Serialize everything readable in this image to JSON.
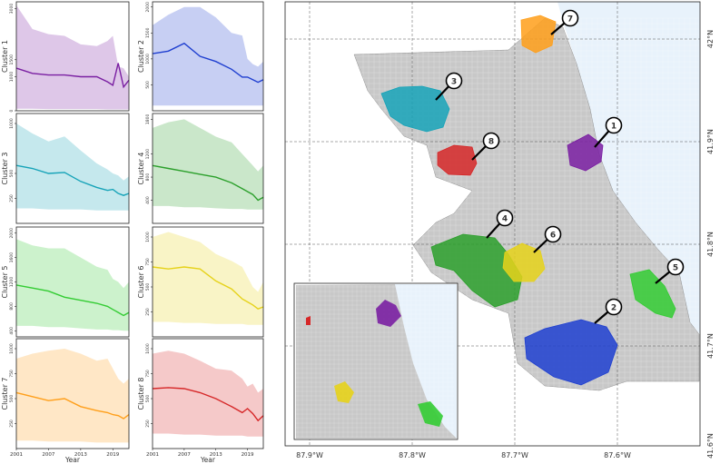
{
  "panel_year_label": "Year",
  "colors": {
    "cluster_1": "#7a1fa2",
    "cluster_2": "#1f3fd0",
    "cluster_3": "#16a3b8",
    "cluster_4": "#2ca02c",
    "cluster_5": "#33cc33",
    "cluster_6": "#e6d21a",
    "cluster_7": "#ff9f1a",
    "cluster_8": "#d62728",
    "city": "#9a9a9a",
    "lake": "#e8f2fb"
  },
  "chart_data": [
    {
      "type": "area",
      "title": "",
      "ylabel": "Cluster 1",
      "xlabel": "",
      "x": [
        2001,
        2004,
        2007,
        2010,
        2013,
        2016,
        2018,
        2019,
        2020,
        2021,
        2022
      ],
      "ylim": [
        0,
        3200
      ],
      "yticks": [
        0,
        1000,
        1500,
        3000
      ],
      "series": [
        {
          "values": [
            1250,
            1100,
            1050,
            1050,
            1000,
            1000,
            850,
            750,
            1400,
            700,
            900
          ]
        }
      ],
      "band_upper": [
        3100,
        2400,
        2250,
        2200,
        1950,
        1900,
        2050,
        2200,
        1300,
        1250,
        1000
      ],
      "band_lower": [
        60,
        60,
        50,
        50,
        50,
        50,
        40,
        40,
        40,
        40,
        40
      ]
    },
    {
      "type": "area",
      "title": "",
      "ylabel": "Cluster 2",
      "xlabel": "",
      "x": [
        2001,
        2004,
        2007,
        2010,
        2013,
        2016,
        2018,
        2019,
        2020,
        2021,
        2022
      ],
      "ylim": [
        0,
        2100
      ],
      "yticks": [
        500,
        1000,
        1500,
        2000
      ],
      "series": [
        {
          "values": [
            1100,
            1150,
            1300,
            1050,
            950,
            800,
            650,
            650,
            600,
            550,
            600
          ]
        }
      ],
      "band_upper": [
        1650,
        1850,
        2000,
        2000,
        1800,
        1500,
        1450,
        1000,
        900,
        850,
        950
      ],
      "band_lower": [
        100,
        100,
        100,
        100,
        100,
        100,
        100,
        100,
        100,
        100,
        100
      ]
    },
    {
      "type": "area",
      "title": "",
      "ylabel": "Cluster 3",
      "xlabel": "",
      "x": [
        2001,
        2004,
        2007,
        2010,
        2013,
        2016,
        2018,
        2019,
        2020,
        2021,
        2022
      ],
      "ylim": [
        0,
        1100
      ],
      "yticks": [
        250,
        500,
        1000
      ],
      "series": [
        {
          "values": [
            580,
            550,
            500,
            510,
            420,
            360,
            330,
            340,
            300,
            280,
            300
          ]
        }
      ],
      "band_upper": [
        1000,
        900,
        820,
        870,
        730,
        600,
        540,
        500,
        480,
        430,
        470
      ],
      "band_lower": [
        150,
        150,
        140,
        140,
        140,
        130,
        130,
        130,
        130,
        130,
        130
      ]
    },
    {
      "type": "area",
      "title": "",
      "ylabel": "Cluster 4",
      "xlabel": "",
      "x": [
        2001,
        2004,
        2007,
        2010,
        2013,
        2016,
        2018,
        2019,
        2020,
        2021,
        2022
      ],
      "ylim": [
        0,
        1900
      ],
      "yticks": [
        400,
        800,
        1200,
        1800
      ],
      "series": [
        {
          "values": [
            1000,
            950,
            900,
            850,
            800,
            700,
            600,
            550,
            500,
            400,
            450
          ]
        }
      ],
      "band_upper": [
        1650,
        1750,
        1800,
        1650,
        1500,
        1400,
        1200,
        1100,
        1000,
        900,
        1000
      ],
      "band_lower": [
        300,
        300,
        280,
        280,
        260,
        250,
        250,
        240,
        240,
        240,
        240
      ]
    },
    {
      "type": "area",
      "title": "",
      "ylabel": "Cluster 5",
      "xlabel": "",
      "x": [
        2001,
        2004,
        2007,
        2010,
        2013,
        2016,
        2018,
        2019,
        2020,
        2021,
        2022
      ],
      "ylim": [
        300,
        2100
      ],
      "yticks": [
        400,
        800,
        1200,
        1600,
        2000
      ],
      "series": [
        {
          "values": [
            1150,
            1100,
            1050,
            950,
            900,
            850,
            800,
            750,
            700,
            650,
            700
          ]
        }
      ],
      "band_upper": [
        1900,
        1800,
        1750,
        1750,
        1600,
        1450,
        1400,
        1250,
        1200,
        1100,
        1200
      ],
      "band_lower": [
        480,
        480,
        460,
        460,
        440,
        420,
        420,
        410,
        410,
        400,
        400
      ]
    },
    {
      "type": "area",
      "title": "",
      "ylabel": "Cluster 6",
      "xlabel": "",
      "x": [
        2001,
        2004,
        2007,
        2010,
        2013,
        2016,
        2018,
        2019,
        2020,
        2021,
        2022
      ],
      "ylim": [
        0,
        1100
      ],
      "yticks": [
        250,
        500,
        750,
        1000
      ],
      "series": [
        {
          "values": [
            700,
            680,
            700,
            680,
            560,
            480,
            380,
            350,
            320,
            280,
            300
          ]
        }
      ],
      "band_upper": [
        1000,
        1050,
        1000,
        950,
        830,
        760,
        700,
        600,
        500,
        450,
        550
      ],
      "band_lower": [
        150,
        150,
        140,
        140,
        130,
        130,
        130,
        120,
        120,
        120,
        120
      ]
    },
    {
      "type": "area",
      "title": "",
      "ylabel": "Cluster 7",
      "xlabel": "",
      "x": [
        2001,
        2004,
        2007,
        2010,
        2013,
        2016,
        2018,
        2019,
        2020,
        2021,
        2022
      ],
      "ylim": [
        0,
        1100
      ],
      "yticks": [
        250,
        500,
        750,
        1000
      ],
      "series": [
        {
          "values": [
            560,
            520,
            480,
            500,
            420,
            380,
            360,
            340,
            330,
            300,
            340
          ]
        }
      ],
      "band_upper": [
        900,
        950,
        980,
        1000,
        950,
        880,
        900,
        800,
        700,
        650,
        700
      ],
      "band_lower": [
        80,
        80,
        70,
        70,
        70,
        60,
        60,
        60,
        60,
        60,
        60
      ]
    },
    {
      "type": "area",
      "title": "",
      "ylabel": "Cluster 8",
      "xlabel": "",
      "x": [
        2001,
        2004,
        2007,
        2010,
        2013,
        2016,
        2018,
        2019,
        2020,
        2021,
        2022
      ],
      "ylim": [
        0,
        1100
      ],
      "yticks": [
        250,
        500,
        750,
        1000
      ],
      "series": [
        {
          "values": [
            600,
            610,
            600,
            560,
            500,
            420,
            360,
            400,
            350,
            280,
            330
          ]
        }
      ],
      "band_upper": [
        950,
        980,
        950,
        880,
        800,
        780,
        700,
        620,
        650,
        560,
        600
      ],
      "band_lower": [
        150,
        150,
        140,
        140,
        130,
        130,
        130,
        120,
        120,
        120,
        120
      ]
    }
  ],
  "panel_xticks": [
    "2001",
    "2007",
    "2013",
    "2019"
  ],
  "map": {
    "lon_ticks": [
      "87.9°W",
      "87.8°W",
      "87.7°W",
      "87.6°W"
    ],
    "lat_ticks": [
      "42°N",
      "41.9°N",
      "41.8°N",
      "41.7°N",
      "41.6°N"
    ],
    "markers": [
      "1",
      "2",
      "3",
      "4",
      "5",
      "6",
      "7",
      "8"
    ]
  }
}
